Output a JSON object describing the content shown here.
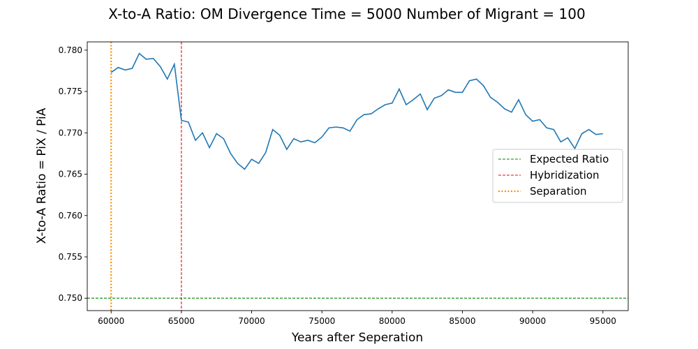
{
  "chart_data": {
    "type": "line",
    "title": "X-to-A Ratio: OM Divergence Time = 5000  Number of Migrant = 100",
    "xlabel": "Years after Seperation",
    "ylabel": "X-to-A Ratio = PiX / PiA",
    "xlim": [
      58300,
      96800
    ],
    "ylim": [
      0.7485,
      0.781
    ],
    "xticks": [
      60000,
      65000,
      70000,
      75000,
      80000,
      85000,
      90000,
      95000
    ],
    "yticks": [
      0.75,
      0.755,
      0.76,
      0.765,
      0.77,
      0.775,
      0.78
    ],
    "legend_position": "center-right",
    "grid": false,
    "series": [
      {
        "color": "#1f77b4",
        "x": [
          60000,
          60500,
          61000,
          61500,
          62000,
          62500,
          63000,
          63500,
          64000,
          64500,
          65000,
          65500,
          66000,
          66500,
          67000,
          67500,
          68000,
          68500,
          69000,
          69500,
          70000,
          70500,
          71000,
          71500,
          72000,
          72500,
          73000,
          73500,
          74000,
          74500,
          75000,
          75500,
          76000,
          76500,
          77000,
          77500,
          78000,
          78500,
          79000,
          79500,
          80000,
          80500,
          81000,
          81500,
          82000,
          82500,
          83000,
          83500,
          84000,
          84500,
          85000,
          85500,
          86000,
          86500,
          87000,
          87500,
          88000,
          88500,
          89000,
          89500,
          90000,
          90500,
          91000,
          91500,
          92000,
          92500,
          93000,
          93500,
          94000,
          94500,
          95000
        ],
        "values": [
          0.7773,
          0.7779,
          0.7776,
          0.7778,
          0.7796,
          0.7789,
          0.779,
          0.778,
          0.7765,
          0.7783,
          0.7715,
          0.7713,
          0.7691,
          0.77,
          0.7682,
          0.7699,
          0.7693,
          0.7675,
          0.7663,
          0.7656,
          0.7668,
          0.7663,
          0.7676,
          0.7704,
          0.7697,
          0.768,
          0.7693,
          0.7689,
          0.7691,
          0.7688,
          0.7695,
          0.7706,
          0.7707,
          0.7706,
          0.7702,
          0.7716,
          0.7722,
          0.7723,
          0.7729,
          0.7734,
          0.7736,
          0.7753,
          0.7734,
          0.774,
          0.7747,
          0.7728,
          0.7742,
          0.7745,
          0.7752,
          0.7749,
          0.7749,
          0.7763,
          0.7765,
          0.7757,
          0.7743,
          0.7737,
          0.7729,
          0.7725,
          0.774,
          0.7722,
          0.7714,
          0.7716,
          0.7706,
          0.7704,
          0.7689,
          0.7694,
          0.7681,
          0.7699,
          0.7704,
          0.7698,
          0.7699
        ]
      }
    ],
    "reference_lines": [
      {
        "name": "Expected Ratio",
        "orientation": "horizontal",
        "value": 0.75,
        "color": "#008000",
        "style": "dashed"
      },
      {
        "name": "Hybridization",
        "orientation": "vertical",
        "value": 65000,
        "color": "#ff0000",
        "style": "dashed"
      },
      {
        "name": "Separation",
        "orientation": "vertical",
        "value": 60000,
        "color": "#ff8c00",
        "style": "dotted"
      }
    ]
  }
}
